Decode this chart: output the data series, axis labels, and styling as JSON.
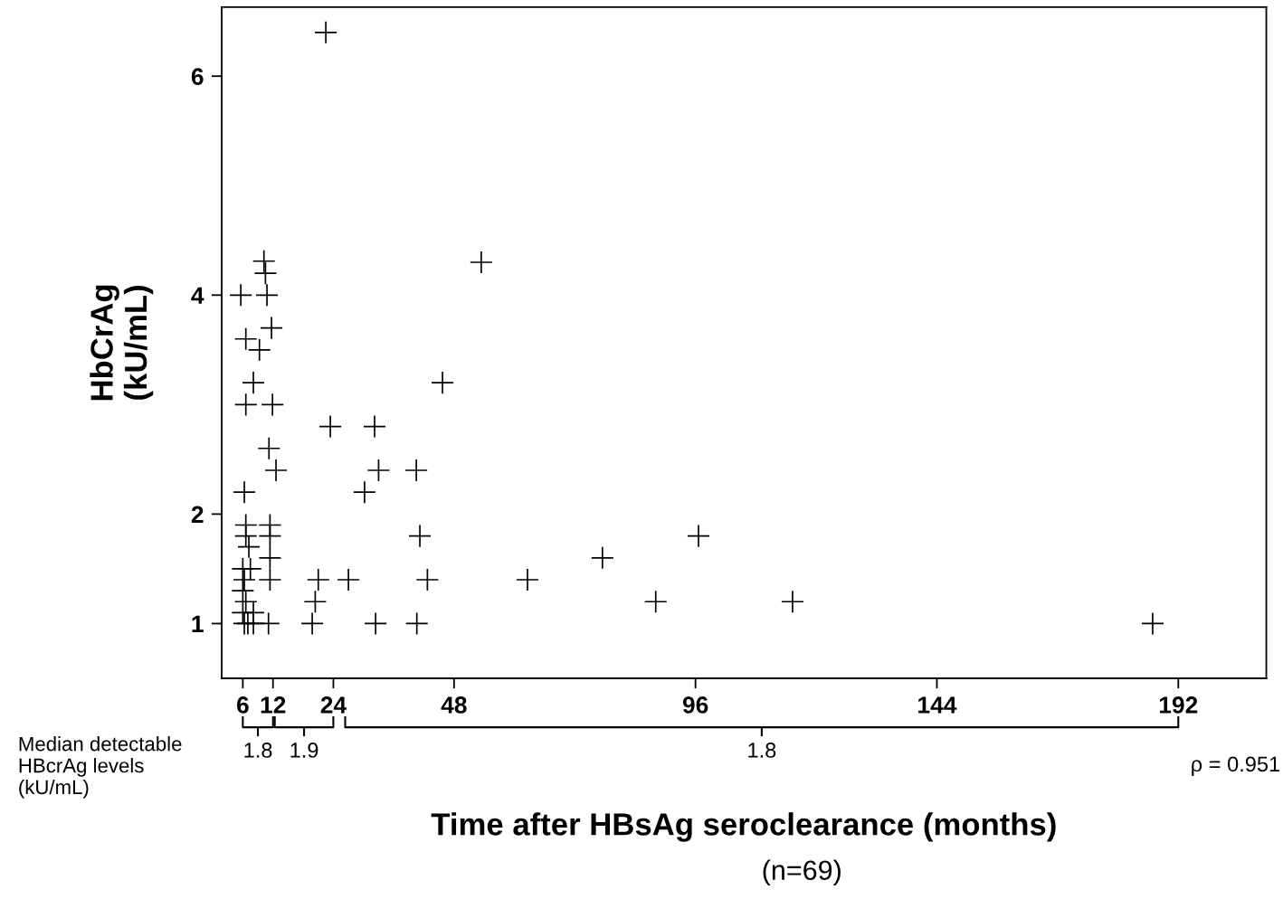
{
  "chart_data": {
    "type": "scatter",
    "xlabel": "Time after HBsAg seroclearance (months)",
    "ylabel": "HbCrAg\n(kU/mL)",
    "x": [
      22.5,
      10.2,
      10.5,
      5.6,
      10.8,
      11.7,
      6.6,
      9.3,
      8.1,
      6.6,
      11.9,
      23.4,
      11.2,
      12.6,
      6.3,
      6.6,
      11.4,
      6.6,
      11.4,
      7.2,
      11.4,
      6.0,
      7.5,
      6.3,
      11.4,
      21,
      6.0,
      6.6,
      20.4,
      6.0,
      8.1,
      6.3,
      7.0,
      8.1,
      11.1,
      19.8,
      45.7,
      32.2,
      33,
      40.5,
      30.2,
      41.2,
      96.6,
      77.5,
      27,
      42.7,
      62.6,
      88.1,
      32.4,
      40.6,
      53.4,
      115.3,
      186.9
    ],
    "values": [
      6.4,
      4.31,
      4.2,
      4.0,
      4.0,
      3.7,
      3.6,
      3.5,
      3.2,
      3.0,
      3.0,
      2.8,
      2.6,
      2.4,
      2.2,
      1.9,
      1.9,
      1.8,
      1.8,
      1.7,
      1.6,
      1.5,
      1.5,
      1.4,
      1.4,
      1.4,
      1.3,
      1.2,
      1.2,
      1.1,
      1.1,
      1.0,
      1.0,
      1.0,
      1.0,
      1.0,
      3.2,
      2.8,
      2.4,
      2.4,
      2.2,
      1.8,
      1.8,
      1.6,
      1.4,
      1.4,
      1.4,
      1.2,
      1.0,
      1.0,
      4.3,
      1.2,
      1.0
    ],
    "color": "#000000",
    "marker": "cross",
    "xlim": [
      1.8,
      209.5
    ],
    "ylim": [
      0.5,
      6.63
    ],
    "xticks": [
      6,
      12,
      24,
      48,
      96,
      144,
      192
    ],
    "yticks": [
      1,
      2,
      4,
      6
    ],
    "grid": false,
    "legend": false,
    "annotations": [
      "1.8",
      "1.9",
      "1.8",
      "Median detectable\nHBcrAg levels\n(kU/mL)",
      "ρ = 0.951",
      "(n=69)"
    ]
  }
}
